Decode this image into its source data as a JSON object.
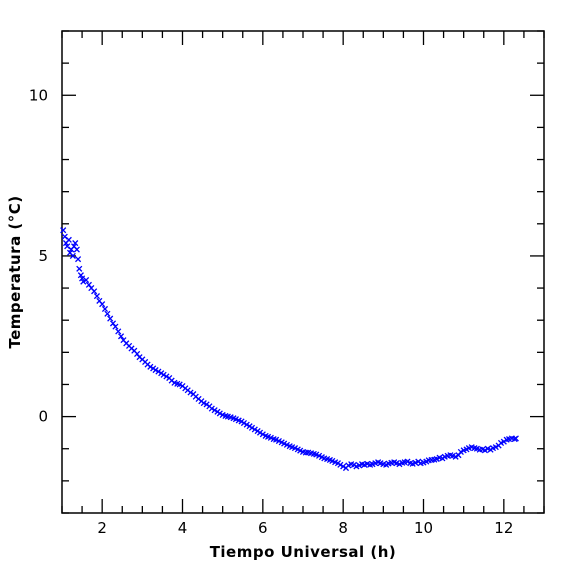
{
  "chart_data": {
    "type": "scatter",
    "xlabel": "Tiempo Universal (h)",
    "ylabel": "Temperatura (°C)",
    "xlim": [
      1.0,
      13.0
    ],
    "ylim": [
      -3.0,
      12.0
    ],
    "xticks": [
      2,
      4,
      6,
      8,
      10,
      12
    ],
    "yticks": [
      0,
      5,
      10
    ],
    "marker": "x",
    "color": "#0000ff",
    "series": [
      {
        "x": [
          1.03,
          1.07,
          1.1,
          1.13,
          1.17,
          1.2,
          1.23,
          1.27,
          1.3,
          1.33,
          1.37,
          1.4,
          1.43,
          1.47,
          1.5,
          1.53,
          1.6,
          1.67,
          1.73,
          1.8,
          1.87,
          1.93,
          2.0,
          2.07,
          2.13,
          2.2,
          2.27,
          2.33,
          2.4,
          2.47,
          2.53,
          2.6,
          2.67,
          2.73,
          2.8,
          2.87,
          2.93,
          3.0,
          3.07,
          3.13,
          3.2,
          3.27,
          3.33,
          3.4,
          3.47,
          3.53,
          3.6,
          3.67,
          3.73,
          3.8,
          3.87,
          3.93,
          4.0,
          4.07,
          4.13,
          4.2,
          4.27,
          4.33,
          4.4,
          4.47,
          4.53,
          4.6,
          4.67,
          4.73,
          4.8,
          4.87,
          4.93,
          5.0,
          5.07,
          5.13,
          5.2,
          5.27,
          5.33,
          5.4,
          5.47,
          5.53,
          5.6,
          5.67,
          5.73,
          5.8,
          5.87,
          5.93,
          6.0,
          6.07,
          6.13,
          6.2,
          6.27,
          6.33,
          6.4,
          6.47,
          6.53,
          6.6,
          6.67,
          6.73,
          6.8,
          6.87,
          6.93,
          7.0,
          7.07,
          7.13,
          7.2,
          7.27,
          7.33,
          7.4,
          7.47,
          7.53,
          7.6,
          7.67,
          7.73,
          7.8,
          7.87,
          7.93,
          8.0,
          8.07,
          8.13,
          8.2,
          8.27,
          8.33,
          8.4,
          8.47,
          8.53,
          8.6,
          8.67,
          8.73,
          8.8,
          8.87,
          8.93,
          9.0,
          9.07,
          9.13,
          9.2,
          9.27,
          9.33,
          9.4,
          9.47,
          9.53,
          9.6,
          9.67,
          9.73,
          9.8,
          9.87,
          9.93,
          10.0,
          10.07,
          10.13,
          10.2,
          10.27,
          10.33,
          10.4,
          10.47,
          10.53,
          10.6,
          10.67,
          10.73,
          10.8,
          10.87,
          10.93,
          11.0,
          11.07,
          11.13,
          11.2,
          11.27,
          11.33,
          11.4,
          11.47,
          11.53,
          11.6,
          11.67,
          11.73,
          11.8,
          11.87,
          11.93,
          12.0,
          12.07,
          12.13,
          12.2,
          12.27,
          12.3
        ],
        "y": [
          5.8,
          5.6,
          5.4,
          5.3,
          5.5,
          5.1,
          5.2,
          5.0,
          5.3,
          5.4,
          5.2,
          4.9,
          4.6,
          4.4,
          4.3,
          4.2,
          4.25,
          4.1,
          4.0,
          3.9,
          3.75,
          3.6,
          3.5,
          3.35,
          3.2,
          3.05,
          2.9,
          2.8,
          2.65,
          2.5,
          2.38,
          2.28,
          2.2,
          2.12,
          2.05,
          1.95,
          1.85,
          1.78,
          1.7,
          1.62,
          1.55,
          1.5,
          1.45,
          1.4,
          1.35,
          1.3,
          1.25,
          1.2,
          1.12,
          1.05,
          1.02,
          1.0,
          0.95,
          0.88,
          0.82,
          0.75,
          0.7,
          0.62,
          0.55,
          0.48,
          0.42,
          0.38,
          0.32,
          0.25,
          0.2,
          0.15,
          0.1,
          0.05,
          0.02,
          0.0,
          -0.02,
          -0.05,
          -0.08,
          -0.12,
          -0.15,
          -0.2,
          -0.25,
          -0.3,
          -0.35,
          -0.4,
          -0.45,
          -0.5,
          -0.55,
          -0.6,
          -0.63,
          -0.66,
          -0.7,
          -0.72,
          -0.76,
          -0.8,
          -0.84,
          -0.88,
          -0.92,
          -0.95,
          -0.98,
          -1.02,
          -1.06,
          -1.1,
          -1.12,
          -1.12,
          -1.14,
          -1.16,
          -1.18,
          -1.22,
          -1.26,
          -1.3,
          -1.32,
          -1.35,
          -1.38,
          -1.42,
          -1.45,
          -1.5,
          -1.55,
          -1.6,
          -1.52,
          -1.48,
          -1.5,
          -1.55,
          -1.52,
          -1.48,
          -1.5,
          -1.47,
          -1.5,
          -1.48,
          -1.45,
          -1.42,
          -1.45,
          -1.48,
          -1.5,
          -1.46,
          -1.44,
          -1.42,
          -1.45,
          -1.48,
          -1.44,
          -1.42,
          -1.4,
          -1.45,
          -1.47,
          -1.44,
          -1.4,
          -1.45,
          -1.43,
          -1.4,
          -1.36,
          -1.35,
          -1.34,
          -1.32,
          -1.28,
          -1.3,
          -1.25,
          -1.22,
          -1.2,
          -1.22,
          -1.25,
          -1.2,
          -1.1,
          -1.05,
          -1.02,
          -0.98,
          -0.95,
          -0.98,
          -1.0,
          -1.03,
          -1.02,
          -1.05,
          -1.0,
          -1.03,
          -0.98,
          -0.95,
          -0.9,
          -0.82,
          -0.78,
          -0.72,
          -0.7,
          -0.68,
          -0.7,
          -0.68
        ]
      }
    ]
  }
}
